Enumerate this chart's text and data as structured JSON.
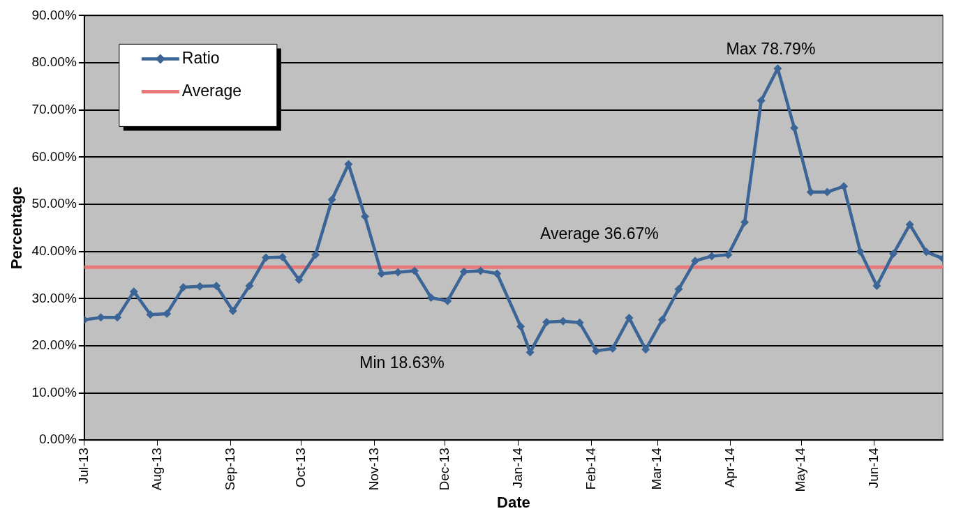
{
  "chart_data": {
    "type": "line",
    "xlabel": "Date",
    "ylabel": "Percentage",
    "x": [
      "2013-07-01",
      "2013-07-08",
      "2013-07-15",
      "2013-07-22",
      "2013-07-29",
      "2013-08-05",
      "2013-08-12",
      "2013-08-19",
      "2013-08-26",
      "2013-09-02",
      "2013-09-09",
      "2013-09-16",
      "2013-09-23",
      "2013-09-30",
      "2013-10-07",
      "2013-10-14",
      "2013-10-21",
      "2013-10-28",
      "2013-11-04",
      "2013-11-11",
      "2013-11-18",
      "2013-11-25",
      "2013-12-02",
      "2013-12-09",
      "2013-12-16",
      "2013-12-23",
      "2014-01-02",
      "2014-01-06",
      "2014-01-13",
      "2014-01-20",
      "2014-01-27",
      "2014-02-03",
      "2014-02-10",
      "2014-02-17",
      "2014-02-24",
      "2014-03-03",
      "2014-03-10",
      "2014-03-17",
      "2014-03-24",
      "2014-03-31",
      "2014-04-07",
      "2014-04-14",
      "2014-04-21",
      "2014-04-28",
      "2014-05-05",
      "2014-05-12",
      "2014-05-19",
      "2014-05-26",
      "2014-06-02",
      "2014-06-09",
      "2014-06-16",
      "2014-06-23",
      "2014-06-30"
    ],
    "series": [
      {
        "name": "Ratio",
        "color": "#3a6596",
        "values": [
          25.5,
          26.0,
          26.0,
          31.5,
          26.6,
          26.8,
          32.4,
          32.6,
          32.7,
          27.4,
          32.7,
          38.7,
          38.8,
          34.0,
          39.3,
          51.0,
          58.5,
          47.4,
          35.3,
          35.6,
          35.9,
          30.2,
          29.5,
          35.7,
          35.9,
          35.3,
          24.1,
          18.63,
          25.0,
          25.2,
          24.9,
          18.9,
          19.4,
          25.9,
          19.2,
          25.5,
          32.0,
          38.0,
          39.0,
          39.3,
          46.2,
          72.0,
          78.79,
          66.2,
          52.6,
          52.6,
          53.8,
          40.0,
          32.7,
          39.5,
          45.7,
          39.9,
          38.5
        ]
      }
    ],
    "xlim": [
      "2013-07-01",
      "2014-06-30"
    ],
    "xticks": [
      {
        "value": "2013-07-01",
        "label": "Jul-13"
      },
      {
        "value": "2013-08-01",
        "label": "Aug-13"
      },
      {
        "value": "2013-09-01",
        "label": "Sep-13"
      },
      {
        "value": "2013-10-01",
        "label": "Oct-13"
      },
      {
        "value": "2013-11-01",
        "label": "Nov-13"
      },
      {
        "value": "2013-12-01",
        "label": "Dec-13"
      },
      {
        "value": "2014-01-01",
        "label": "Jan-14"
      },
      {
        "value": "2014-02-01",
        "label": "Feb-14"
      },
      {
        "value": "2014-03-01",
        "label": "Mar-14"
      },
      {
        "value": "2014-04-01",
        "label": "Apr-14"
      },
      {
        "value": "2014-05-01",
        "label": "May-14"
      },
      {
        "value": "2014-06-01",
        "label": "Jun-14"
      }
    ],
    "ylim": [
      0,
      90
    ],
    "yticks": [
      {
        "value": 0,
        "label": "0.00%"
      },
      {
        "value": 10,
        "label": "10.00%"
      },
      {
        "value": 20,
        "label": "20.00%"
      },
      {
        "value": 30,
        "label": "30.00%"
      },
      {
        "value": 40,
        "label": "40.00%"
      },
      {
        "value": 50,
        "label": "50.00%"
      },
      {
        "value": 60,
        "label": "60.00%"
      },
      {
        "value": 70,
        "label": "70.00%"
      },
      {
        "value": 80,
        "label": "80.00%"
      },
      {
        "value": 90,
        "label": "90.00%"
      }
    ],
    "ref_lines": [
      {
        "axis": "y",
        "value": 36.67,
        "label": "Average",
        "color": "#e8787a"
      }
    ],
    "annotations": [
      {
        "text": "Max 78.79%",
        "x": "2014-04-21",
        "y": 78.79
      },
      "Min 18.63%",
      {
        "text": "Average 36.67%",
        "y": 36.67
      }
    ],
    "grid": "y",
    "legend": "top left",
    "marker": "diamond",
    "line_style": "solid"
  }
}
